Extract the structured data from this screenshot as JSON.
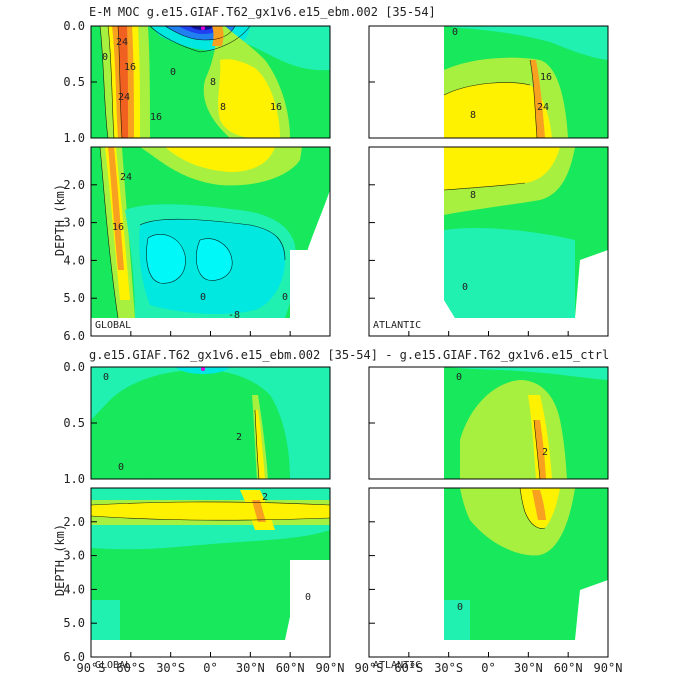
{
  "header": {
    "title_top": "E-M MOC   g.e15.GIAF.T62_gx1v6.e15_ebm.002 [35-54]",
    "title_bottom": "g.e15.GIAF.T62_gx1v6.e15_ebm.002 [35-54] - g.e15.GIAF.T62_gx1v6.e15_ctrl"
  },
  "chart_data": [
    {
      "type": "contour",
      "panel": "top-global",
      "label": "GLOBAL",
      "ylabel": "DEPTH (km)",
      "x_range_deg": [
        -90,
        90
      ],
      "y_range_km": [
        0,
        6
      ],
      "y_break_km": 1.0,
      "y_ticks_upper": [
        "0.0",
        "0.5",
        "1.0"
      ],
      "y_ticks_lower": [
        "2.0",
        "3.0",
        "4.0",
        "5.0",
        "6.0"
      ],
      "contour_labels": [
        "24",
        "16",
        "24",
        "16",
        "8",
        "0",
        "0",
        "8",
        "16",
        "24",
        "16",
        "0",
        "-8",
        "0"
      ]
    },
    {
      "type": "contour",
      "panel": "top-atlantic",
      "label": "ATLANTIC",
      "x_range_deg": [
        -90,
        90
      ],
      "y_range_km": [
        0,
        6
      ],
      "contour_labels": [
        "0",
        "16",
        "8",
        "24",
        "8",
        "0"
      ]
    },
    {
      "type": "contour",
      "panel": "bottom-global",
      "label": "GLOBAL",
      "ylabel": "DEPTH (km)",
      "x_range_deg": [
        -90,
        90
      ],
      "y_range_km": [
        0,
        6
      ],
      "y_ticks_upper": [
        "0.0",
        "0.5",
        "1.0"
      ],
      "y_ticks_lower": [
        "2.0",
        "3.0",
        "4.0",
        "5.0",
        "6.0"
      ],
      "contour_labels": [
        "0",
        "0",
        "2",
        "2",
        "0"
      ]
    },
    {
      "type": "contour",
      "panel": "bottom-atlantic",
      "label": "ATLANTIC",
      "x_range_deg": [
        -90,
        90
      ],
      "y_range_km": [
        0,
        6
      ],
      "x_ticks": [
        "90°S",
        "60°S",
        "30°S",
        "0°",
        "30°N",
        "60°N",
        "90°N"
      ],
      "contour_labels": [
        "0",
        "2",
        "0"
      ]
    }
  ],
  "x_tick_labels": [
    "90°S",
    "60°S",
    "30°S",
    "0°",
    "30°N",
    "60°N",
    "90°N"
  ],
  "colors": {
    "cyan": "#00e8e0",
    "teal": "#20f0b0",
    "green": "#18e85c",
    "lime": "#a8f040",
    "yellow": "#fff200",
    "orange": "#f8a020",
    "red": "#f06020",
    "blue": "#2040f0",
    "navy": "#101090",
    "magenta": "#e000e0"
  }
}
